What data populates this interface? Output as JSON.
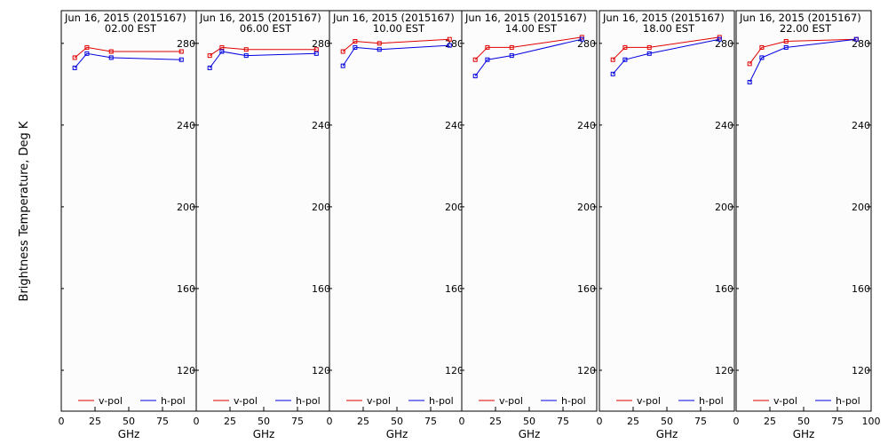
{
  "figure": {
    "ylabel": "Brightness Temperature, Deg K"
  },
  "chart_data": [
    {
      "type": "line",
      "title": "Jun 16, 2015 (2015167)",
      "subtitle": "02.00 EST",
      "xlabel": "GHz",
      "xlim": [
        0,
        100
      ],
      "ylim": [
        100,
        296
      ],
      "xticks": [
        0,
        25,
        50,
        75,
        100
      ],
      "yticks": [
        120,
        160,
        200,
        240,
        280
      ],
      "legend": "bottom",
      "series": [
        {
          "name": "v-pol",
          "color": "#e00000",
          "x": [
            10,
            19,
            37,
            89
          ],
          "y": [
            273,
            278,
            276,
            276
          ]
        },
        {
          "name": "h-pol",
          "color": "#0000e0",
          "x": [
            10,
            19,
            37,
            89
          ],
          "y": [
            268,
            275,
            273,
            272
          ]
        }
      ]
    },
    {
      "type": "line",
      "title": "Jun 16, 2015 (2015167)",
      "subtitle": "06.00 EST",
      "xlabel": "GHz",
      "xlim": [
        0,
        100
      ],
      "ylim": [
        100,
        296
      ],
      "xticks": [
        0,
        25,
        50,
        75,
        100
      ],
      "yticks": [
        120,
        160,
        200,
        240,
        280
      ],
      "legend": "bottom",
      "series": [
        {
          "name": "v-pol",
          "color": "#e00000",
          "x": [
            10,
            19,
            37,
            89
          ],
          "y": [
            274,
            278,
            277,
            277
          ]
        },
        {
          "name": "h-pol",
          "color": "#0000e0",
          "x": [
            10,
            19,
            37,
            89
          ],
          "y": [
            268,
            276,
            274,
            275
          ]
        }
      ]
    },
    {
      "type": "line",
      "title": "Jun 16, 2015 (2015167)",
      "subtitle": "10.00 EST",
      "xlabel": "GHz",
      "xlim": [
        0,
        100
      ],
      "ylim": [
        100,
        296
      ],
      "xticks": [
        0,
        25,
        50,
        75,
        100
      ],
      "yticks": [
        120,
        160,
        200,
        240,
        280
      ],
      "legend": "bottom",
      "series": [
        {
          "name": "v-pol",
          "color": "#e00000",
          "x": [
            10,
            19,
            37,
            89
          ],
          "y": [
            276,
            281,
            280,
            282
          ]
        },
        {
          "name": "h-pol",
          "color": "#0000e0",
          "x": [
            10,
            19,
            37,
            89
          ],
          "y": [
            269,
            278,
            277,
            279
          ]
        }
      ]
    },
    {
      "type": "line",
      "title": "Jun 16, 2015 (2015167)",
      "subtitle": "14.00 EST",
      "xlabel": "GHz",
      "xlim": [
        0,
        100
      ],
      "ylim": [
        100,
        296
      ],
      "xticks": [
        0,
        25,
        50,
        75,
        100
      ],
      "yticks": [
        120,
        160,
        200,
        240,
        280
      ],
      "legend": "bottom",
      "series": [
        {
          "name": "v-pol",
          "color": "#e00000",
          "x": [
            10,
            19,
            37,
            89
          ],
          "y": [
            272,
            278,
            278,
            283
          ]
        },
        {
          "name": "h-pol",
          "color": "#0000e0",
          "x": [
            10,
            19,
            37,
            89
          ],
          "y": [
            264,
            272,
            274,
            282
          ]
        }
      ]
    },
    {
      "type": "line",
      "title": "Jun 16, 2015 (2015167)",
      "subtitle": "18.00 EST",
      "xlabel": "GHz",
      "xlim": [
        0,
        100
      ],
      "ylim": [
        100,
        296
      ],
      "xticks": [
        0,
        25,
        50,
        75,
        100
      ],
      "yticks": [
        120,
        160,
        200,
        240,
        280
      ],
      "legend": "bottom",
      "series": [
        {
          "name": "v-pol",
          "color": "#e00000",
          "x": [
            10,
            19,
            37,
            89
          ],
          "y": [
            272,
            278,
            278,
            283
          ]
        },
        {
          "name": "h-pol",
          "color": "#0000e0",
          "x": [
            10,
            19,
            37,
            89
          ],
          "y": [
            265,
            272,
            275,
            282
          ]
        }
      ]
    },
    {
      "type": "line",
      "title": "Jun 16, 2015 (2015167)",
      "subtitle": "22.00 EST",
      "xlabel": "GHz",
      "xlim": [
        0,
        100
      ],
      "ylim": [
        100,
        296
      ],
      "xticks": [
        0,
        25,
        50,
        75,
        100
      ],
      "yticks": [
        120,
        160,
        200,
        240,
        280
      ],
      "legend": "bottom",
      "series": [
        {
          "name": "v-pol",
          "color": "#e00000",
          "x": [
            10,
            19,
            37,
            89
          ],
          "y": [
            270,
            278,
            281,
            282
          ]
        },
        {
          "name": "h-pol",
          "color": "#0000e0",
          "x": [
            10,
            19,
            37,
            89
          ],
          "y": [
            261,
            273,
            278,
            282
          ]
        }
      ]
    }
  ]
}
